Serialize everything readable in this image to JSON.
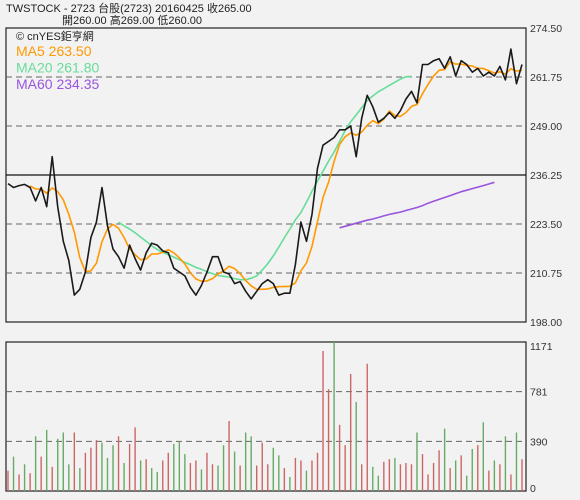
{
  "header": {
    "line1": "TWSTOCK  -  2723  台股(2723)  20160425     收265.00",
    "line2": "開260.00     高269.00     低260.00"
  },
  "brand": "© cnYES鉅亨網",
  "colors": {
    "price": "#1a1a1a",
    "ma5": "#ff9900",
    "ma20": "#66dd99",
    "ma60": "#9955dd",
    "vol_up": "#cc6666",
    "vol_down": "#66aa66",
    "grid": "#666666"
  },
  "chart_data": [
    {
      "type": "line",
      "panel": "price",
      "y_ticks": [
        "274.50",
        "261.75",
        "249.00",
        "236.25",
        "223.50",
        "210.75",
        "198.00"
      ],
      "ylim": [
        198.0,
        274.5
      ],
      "legend": [
        {
          "label": "MA5 263.50",
          "color": "#ff9900"
        },
        {
          "label": "MA20 261.80",
          "color": "#66dd99"
        },
        {
          "label": "MA60 234.35",
          "color": "#9955dd"
        }
      ],
      "series": [
        {
          "name": "price",
          "x_start": 0,
          "values": [
            234.0,
            233.0,
            233.5,
            233.8,
            233.0,
            229.5,
            233.0,
            228.0,
            241.0,
            228.0,
            219.0,
            214.0,
            205.0,
            206.5,
            211.0,
            220.0,
            224.0,
            233.0,
            223.0,
            217.0,
            215.0,
            212.0,
            218.0,
            214.5,
            211.5,
            216.0,
            218.5,
            218.0,
            216.5,
            216.0,
            212.0,
            211.0,
            210.0,
            207.0,
            205.0,
            207.5,
            211.0,
            215.0,
            215.0,
            211.0,
            210.5,
            208.0,
            208.5,
            206.0,
            204.0,
            206.0,
            208.0,
            209.0,
            208.0,
            205.0,
            205.5,
            205.5,
            213.0,
            224.0,
            219.0,
            226.0,
            238.0,
            244.0,
            245.0,
            246.0,
            248.0,
            248.0,
            249.0,
            241.0,
            251.0,
            257.0,
            254.0,
            250.0,
            251.0,
            252.5,
            251.0,
            253.0,
            256.0,
            258.0,
            255.0,
            265.0,
            265.0,
            266.0,
            266.5,
            264.0,
            267.0,
            262.0,
            266.0,
            265.0,
            263.0,
            264.0,
            262.0,
            263.0,
            262.0,
            264.5,
            261.0,
            269.0,
            260.0,
            265.0
          ]
        },
        {
          "name": "MA5",
          "x_start": 0,
          "values": [
            null,
            null,
            null,
            null,
            233.4,
            232.6,
            232.6,
            231.5,
            232.9,
            231.9,
            229.8,
            226.0,
            221.4,
            214.7,
            211.1,
            211.3,
            213.3,
            218.9,
            222.2,
            223.4,
            222.4,
            220.0,
            217.0,
            215.5,
            214.2,
            214.4,
            215.7,
            215.7,
            216.1,
            216.8,
            216.0,
            214.7,
            213.1,
            210.8,
            209.2,
            208.6,
            208.7,
            209.3,
            210.5,
            211.3,
            212.5,
            211.9,
            210.6,
            208.8,
            207.4,
            206.5,
            206.5,
            206.6,
            207.0,
            207.2,
            207.2,
            207.3,
            208.2,
            211.3,
            213.4,
            217.7,
            224.1,
            230.4,
            234.4,
            239.8,
            244.2,
            246.2,
            247.2,
            246.6,
            247.4,
            249.2,
            250.4,
            249.6,
            250.8,
            252.9,
            251.7,
            251.5,
            252.5,
            254.1,
            254.6,
            257.4,
            259.8,
            262.0,
            263.5,
            263.7,
            265.7,
            265.1,
            265.1,
            264.8,
            264.6,
            264.0,
            264.0,
            263.4,
            262.8,
            263.1,
            262.5,
            263.9,
            263.3,
            263.5
          ]
        },
        {
          "name": "MA20",
          "x_start": 20,
          "values": [
            224.0,
            223.0,
            222.2,
            221.2,
            220.1,
            219.0,
            217.8,
            216.9,
            216.1,
            215.5,
            214.9,
            214.2,
            213.5,
            212.9,
            212.2,
            211.7,
            211.1,
            210.6,
            210.1,
            209.9,
            209.7,
            209.3,
            209.0,
            209.0,
            209.4,
            210.0,
            211.5,
            213.2,
            215.2,
            217.5,
            219.9,
            222.2,
            224.6,
            226.5,
            229.2,
            232.0,
            234.7,
            237.2,
            239.9,
            242.2,
            245.0,
            247.8,
            250.1,
            251.9,
            253.8,
            255.6,
            256.8,
            257.9,
            258.7,
            259.6,
            260.4,
            261.2,
            261.8,
            261.9
          ]
        },
        {
          "name": "MA60",
          "x_start": 60,
          "values": [
            222.5,
            222.9,
            223.3,
            223.7,
            224.1,
            224.5,
            224.8,
            225.2,
            225.6,
            226.0,
            226.3,
            226.6,
            227.0,
            227.4,
            227.8,
            228.3,
            228.9,
            229.4,
            229.9,
            230.4,
            230.9,
            231.4,
            231.9,
            232.3,
            232.7,
            233.1,
            233.5,
            233.9,
            234.35
          ]
        }
      ],
      "reference_lines": [
        {
          "value": 236.25,
          "style": "solid"
        }
      ],
      "x_count": 94
    },
    {
      "type": "bar",
      "panel": "volume",
      "y_ticks": [
        "1171",
        "781",
        "390",
        "0"
      ],
      "ylim": [
        0,
        1171
      ],
      "values": [
        160,
        270,
        130,
        210,
        140,
        430,
        270,
        480,
        190,
        410,
        460,
        210,
        460,
        180,
        300,
        340,
        400,
        380,
        260,
        360,
        430,
        220,
        370,
        500,
        240,
        250,
        180,
        150,
        240,
        300,
        370,
        390,
        290,
        220,
        240,
        170,
        300,
        210,
        200,
        360,
        550,
        310,
        200,
        460,
        430,
        200,
        380,
        210,
        340,
        280,
        180,
        110,
        260,
        240,
        160,
        240,
        300,
        1100,
        800,
        1171,
        520,
        360,
        920,
        700,
        210,
        1000,
        190,
        120,
        230,
        250,
        260,
        210,
        220,
        210,
        460,
        290,
        130,
        220,
        320,
        490,
        180,
        240,
        280,
        120,
        330,
        360,
        540,
        160,
        240,
        210,
        430,
        130,
        460,
        250
      ],
      "up": [
        1,
        0,
        1,
        0,
        1,
        0,
        1,
        0,
        1,
        0,
        0,
        0,
        1,
        0,
        1,
        1,
        1,
        0,
        0,
        0,
        1,
        0,
        1,
        1,
        0,
        1,
        0,
        0,
        1,
        1,
        0,
        0,
        0,
        1,
        1,
        0,
        1,
        1,
        0,
        0,
        1,
        0,
        1,
        0,
        0,
        1,
        1,
        1,
        0,
        0,
        1,
        0,
        1,
        1,
        0,
        1,
        1,
        1,
        1,
        0,
        1,
        1,
        1,
        0,
        1,
        1,
        0,
        0,
        1,
        1,
        0,
        1,
        1,
        1,
        0,
        1,
        1,
        1,
        1,
        0,
        1,
        0,
        1,
        0,
        0,
        1,
        0,
        1,
        0,
        1,
        0,
        1,
        0,
        1
      ]
    }
  ]
}
